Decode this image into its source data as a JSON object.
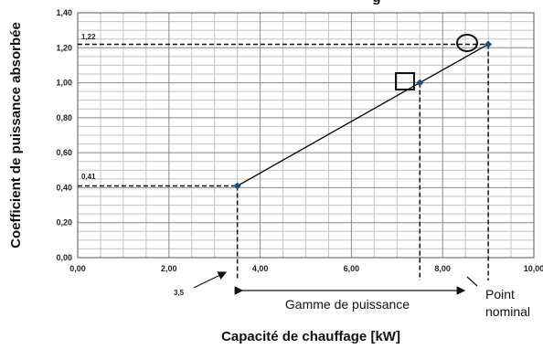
{
  "chart_data": {
    "type": "line",
    "title_fragment": "g",
    "xlabel": "Capacité de chauffage [kW]",
    "ylabel": "Coefficient de puissance absorbée",
    "xlim": [
      0,
      10
    ],
    "ylim": [
      0,
      1.4
    ],
    "x_ticks": [
      "0,00",
      "2,00",
      "4,00",
      "6,00",
      "8,00",
      "10,00"
    ],
    "y_ticks": [
      "0,00",
      "0,20",
      "0,40",
      "0,60",
      "0,80",
      "1,00",
      "1,20",
      "1,40"
    ],
    "grid": true,
    "series": [
      {
        "points": [
          {
            "x": 3.5,
            "y": 0.41
          },
          {
            "x": 7.5,
            "y": 1.0
          },
          {
            "x": 9.0,
            "y": 1.22
          }
        ]
      }
    ],
    "annotations": {
      "y_low_label": "0,41",
      "y_high_label": "1,22",
      "x_low_label": "3,5",
      "range_label": "Gamme de puissance",
      "nominal_label_line1": "Point",
      "nominal_label_line2": "nominal"
    },
    "colors": {
      "marker": "#1f4e79",
      "line": "#000000",
      "grid": "#999999"
    }
  }
}
